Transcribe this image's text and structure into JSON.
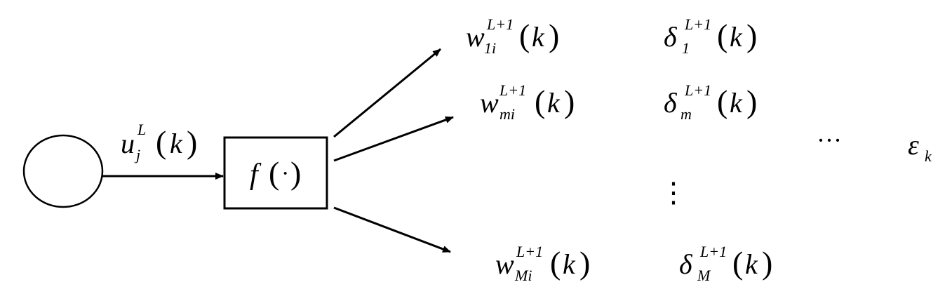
{
  "input": {
    "base": "u",
    "sup": "L",
    "sub": "j",
    "arg": "k"
  },
  "function_box": {
    "name": "f",
    "arg": "·"
  },
  "outputs": [
    {
      "weight": {
        "base": "w",
        "sup": "L+1",
        "sub": "1i",
        "arg": "k"
      },
      "delta": {
        "base": "δ",
        "sup": "L+1",
        "sub": "1",
        "arg": "k"
      }
    },
    {
      "weight": {
        "base": "w",
        "sup": "L+1",
        "sub": "mi",
        "arg": "k"
      },
      "delta": {
        "base": "δ",
        "sup": "L+1",
        "sub": "m",
        "arg": "k"
      }
    },
    {
      "weight": {
        "base": "w",
        "sup": "L+1",
        "sub": "Mi",
        "arg": "k"
      },
      "delta": {
        "base": "δ",
        "sup": "L+1",
        "sub": "M",
        "arg": "k"
      }
    }
  ],
  "ellipsis_horizontal": "···",
  "ellipsis_vertical": "⋮",
  "error": {
    "base": "ε",
    "sub": "k"
  }
}
